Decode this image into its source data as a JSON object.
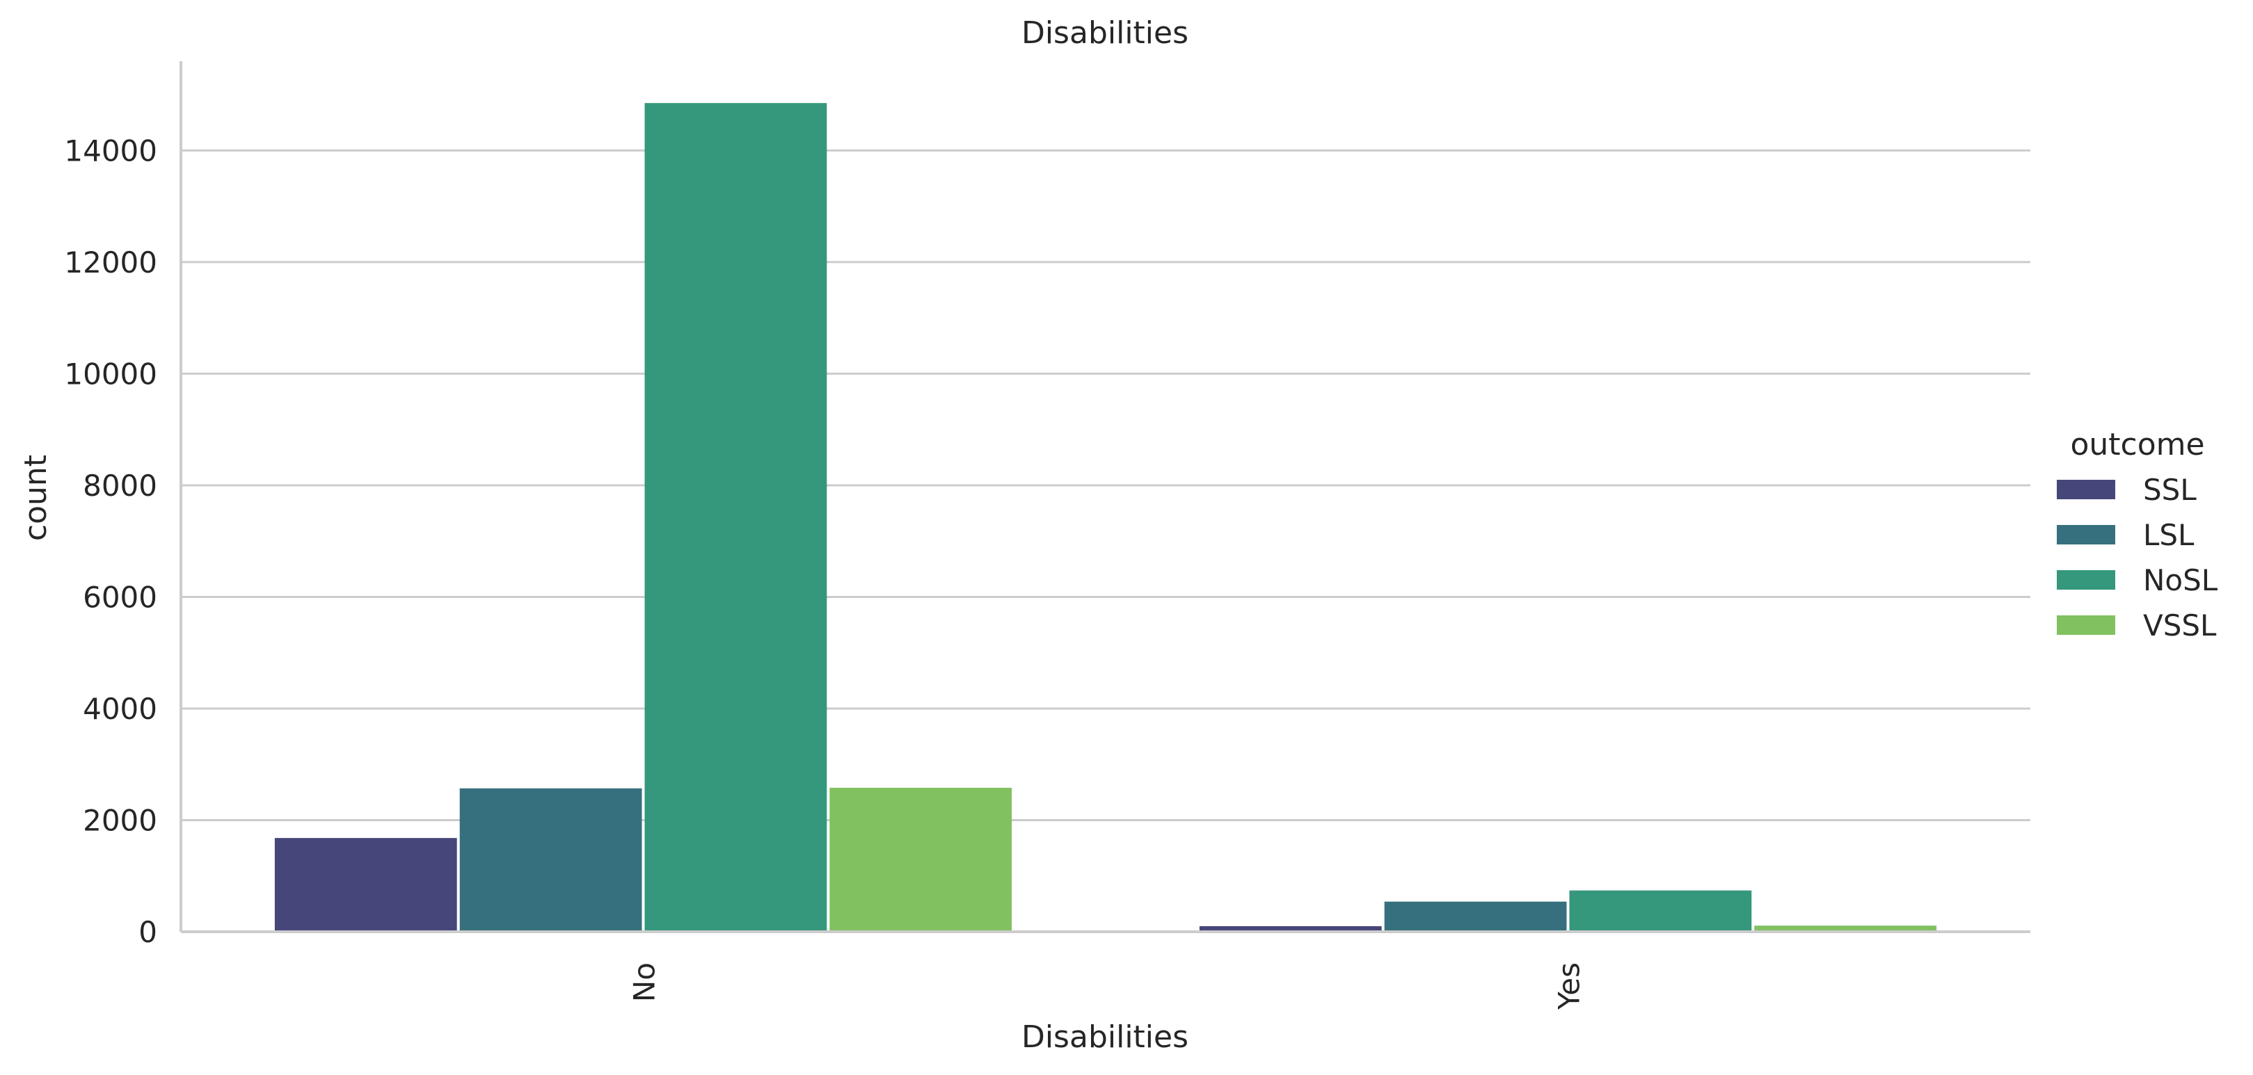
{
  "chart_data": {
    "type": "bar",
    "title": "Disabilities",
    "xlabel": "Disabilities",
    "ylabel": "count",
    "categories": [
      "No",
      "Yes"
    ],
    "series": [
      {
        "name": "SSL",
        "color": "#46467a",
        "values": [
          1680,
          100
        ]
      },
      {
        "name": "LSL",
        "color": "#36707e",
        "values": [
          2570,
          540
        ]
      },
      {
        "name": "NoSL",
        "color": "#35977b",
        "values": [
          14850,
          740
        ]
      },
      {
        "name": "VSSL",
        "color": "#81c160",
        "values": [
          2580,
          110
        ]
      }
    ],
    "ylim": [
      0,
      15600
    ],
    "yticks": [
      0,
      2000,
      4000,
      6000,
      8000,
      10000,
      12000,
      14000
    ],
    "grid": "horizontal",
    "legend": {
      "title": "outcome",
      "placement": "right"
    }
  }
}
